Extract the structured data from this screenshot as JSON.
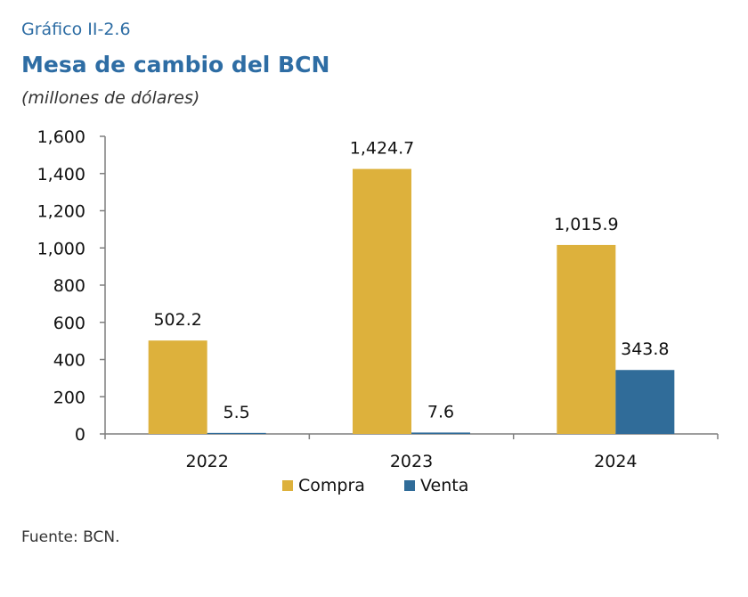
{
  "header": {
    "figure_label": "Gráfico II-2.6",
    "title": "Mesa de cambio del BCN",
    "units": "(millones de dólares)"
  },
  "footer": {
    "source": "Fuente: BCN."
  },
  "chart_data": {
    "type": "bar",
    "categories": [
      "2022",
      "2023",
      "2024"
    ],
    "series": [
      {
        "name": "Compra",
        "values": [
          502.2,
          1424.7,
          1015.9
        ],
        "labels": [
          "502.2",
          "1,424.7",
          "1,015.9"
        ],
        "color": "#ddb13c"
      },
      {
        "name": "Venta",
        "values": [
          5.5,
          7.6,
          343.8
        ],
        "labels": [
          "5.5",
          "7.6",
          "343.8"
        ],
        "color": "#306c99"
      }
    ],
    "ylim": [
      0,
      1600
    ],
    "yticks": [
      0,
      200,
      400,
      600,
      800,
      1000,
      1200,
      1400,
      1600
    ],
    "ytick_labels": [
      "0",
      "200",
      "400",
      "600",
      "800",
      "1,000",
      "1,200",
      "1,400",
      "1,600"
    ],
    "legend": "bottom-center",
    "grid": false
  }
}
